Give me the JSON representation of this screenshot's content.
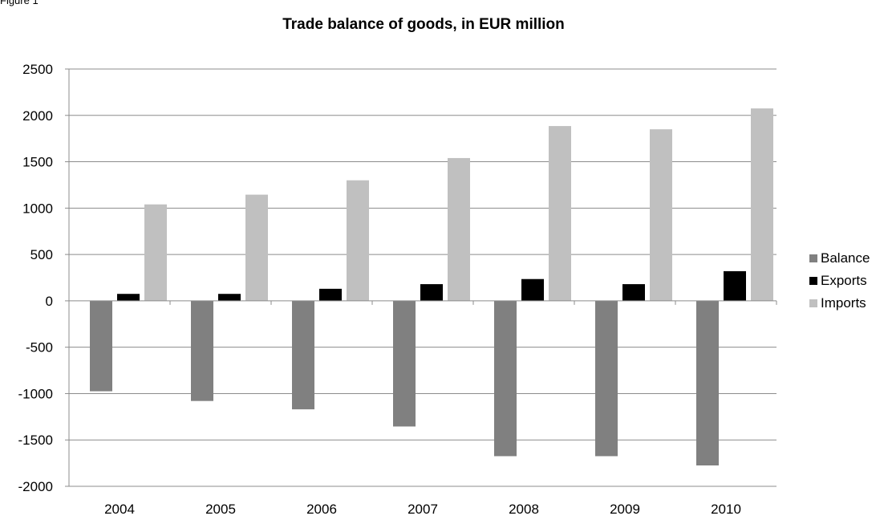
{
  "figure_label": "Figure 1",
  "colors": {
    "balance": "#808080",
    "exports": "#000000",
    "imports": "#c0c0c0",
    "grid": "#8c8c8c"
  },
  "chart_data": {
    "type": "bar",
    "title": "Trade balance of goods, in EUR million",
    "xlabel": "",
    "ylabel": "",
    "categories": [
      "2004",
      "2005",
      "2006",
      "2007",
      "2008",
      "2009",
      "2010"
    ],
    "series": [
      {
        "name": "Balance",
        "values": [
          -975,
          -1080,
          -1170,
          -1355,
          -1675,
          -1675,
          -1775
        ]
      },
      {
        "name": "Exports",
        "values": [
          75,
          75,
          130,
          180,
          235,
          180,
          320
        ]
      },
      {
        "name": "Imports",
        "values": [
          1040,
          1145,
          1300,
          1540,
          1885,
          1850,
          2075
        ]
      }
    ],
    "ylim": [
      -2000,
      2500
    ],
    "yticks": [
      2500,
      2000,
      1500,
      1000,
      500,
      0,
      -500,
      -1000,
      -1500,
      -2000
    ],
    "grid": true,
    "legend_position": "right"
  }
}
